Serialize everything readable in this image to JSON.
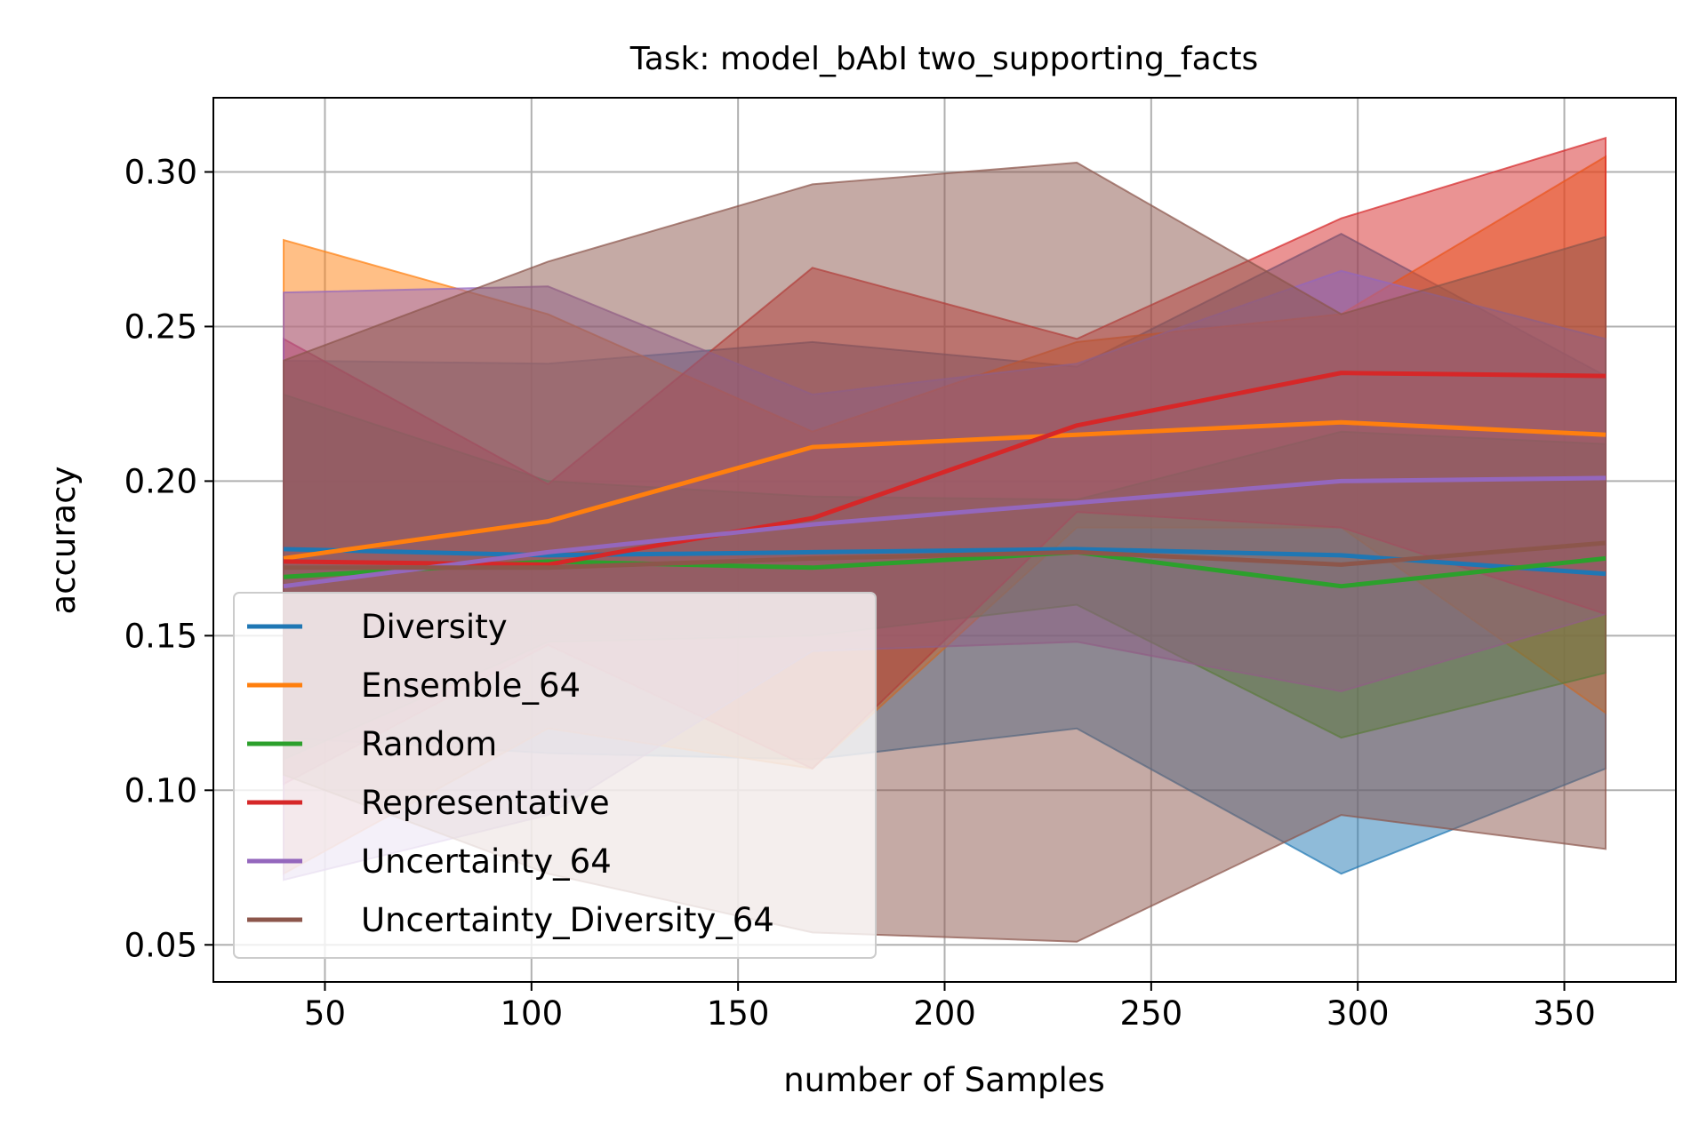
{
  "chart_data": {
    "type": "line",
    "title": "Task: model_bAbI two_supporting_facts",
    "xlabel": "number of Samples",
    "ylabel": "accuracy",
    "xlim": [
      23,
      377
    ],
    "ylim": [
      0.038,
      0.324
    ],
    "xticks": [
      50,
      100,
      150,
      200,
      250,
      300,
      350
    ],
    "xtick_labels": [
      "50",
      "100",
      "150",
      "200",
      "250",
      "300",
      "350"
    ],
    "yticks": [
      0.05,
      0.1,
      0.15,
      0.2,
      0.25,
      0.3
    ],
    "ytick_labels": [
      "0.05",
      "0.10",
      "0.15",
      "0.20",
      "0.25",
      "0.30"
    ],
    "grid": true,
    "legend_position": "lower-left",
    "x": [
      40,
      104,
      168,
      232,
      296,
      360
    ],
    "series": [
      {
        "name": "Diversity",
        "color": "#1f77b4",
        "values": [
          0.178,
          0.176,
          0.177,
          0.178,
          0.176,
          0.17
        ],
        "lower": [
          0.117,
          0.112,
          0.11,
          0.12,
          0.073,
          0.107
        ],
        "upper": [
          0.239,
          0.238,
          0.245,
          0.237,
          0.28,
          0.234
        ]
      },
      {
        "name": "Ensemble_64",
        "color": "#ff7f0e",
        "values": [
          0.175,
          0.187,
          0.211,
          0.215,
          0.219,
          0.215
        ],
        "lower": [
          0.073,
          0.12,
          0.107,
          0.185,
          0.185,
          0.125
        ],
        "upper": [
          0.278,
          0.254,
          0.216,
          0.245,
          0.254,
          0.305
        ]
      },
      {
        "name": "Random",
        "color": "#2ca02c",
        "values": [
          0.169,
          0.174,
          0.172,
          0.177,
          0.166,
          0.175
        ],
        "lower": [
          0.11,
          0.148,
          0.15,
          0.16,
          0.117,
          0.138
        ],
        "upper": [
          0.228,
          0.2,
          0.195,
          0.194,
          0.216,
          0.212
        ]
      },
      {
        "name": "Representative",
        "color": "#d62728",
        "values": [
          0.174,
          0.173,
          0.188,
          0.218,
          0.235,
          0.234
        ],
        "lower": [
          0.102,
          0.147,
          0.107,
          0.19,
          0.185,
          0.157
        ],
        "upper": [
          0.246,
          0.199,
          0.269,
          0.246,
          0.285,
          0.311
        ]
      },
      {
        "name": "Uncertainty_64",
        "color": "#9467bd",
        "values": [
          0.166,
          0.177,
          0.186,
          0.193,
          0.2,
          0.201
        ],
        "lower": [
          0.071,
          0.092,
          0.145,
          0.148,
          0.132,
          0.157
        ],
        "upper": [
          0.261,
          0.263,
          0.228,
          0.238,
          0.268,
          0.246
        ]
      },
      {
        "name": "Uncertainty_Diversity_64",
        "color": "#8c564b",
        "values": [
          0.172,
          0.172,
          0.175,
          0.177,
          0.173,
          0.18
        ],
        "lower": [
          0.105,
          0.073,
          0.054,
          0.051,
          0.092,
          0.081
        ],
        "upper": [
          0.239,
          0.271,
          0.296,
          0.303,
          0.254,
          0.279
        ]
      }
    ]
  }
}
